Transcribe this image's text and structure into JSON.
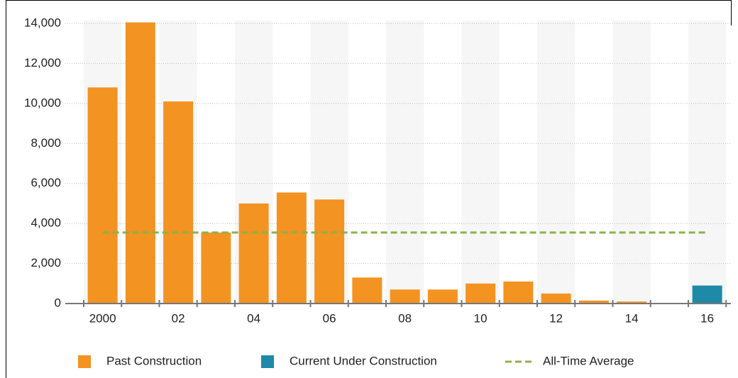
{
  "chart_data": {
    "type": "bar",
    "categories": [
      "2000",
      null,
      "02",
      null,
      "04",
      null,
      "06",
      null,
      "08",
      null,
      "10",
      null,
      "12",
      null,
      "14",
      null,
      "16"
    ],
    "series": [
      {
        "name": "Past Construction",
        "color": "#f39322",
        "values": [
          10800,
          14050,
          10100,
          3550,
          5000,
          5550,
          5200,
          1300,
          700,
          700,
          1000,
          1100,
          500,
          150,
          100,
          30,
          null
        ]
      },
      {
        "name": "Current Under Construction",
        "color": "#1f8aa8",
        "values": [
          null,
          null,
          null,
          null,
          null,
          null,
          null,
          null,
          null,
          null,
          null,
          null,
          null,
          null,
          null,
          null,
          900
        ]
      }
    ],
    "average": {
      "name": "All-Time Average",
      "color": "#8db14a",
      "value": 3550
    },
    "ylim": [
      0,
      14000
    ],
    "yticks": [
      0,
      {
        "value": 2000,
        "label": "2,000"
      },
      {
        "value": 4000,
        "label": "4,000"
      },
      {
        "value": 6000,
        "label": "6,000"
      },
      {
        "value": 8000,
        "label": "8,000"
      },
      {
        "value": 10000,
        "label": "10,000"
      },
      {
        "value": 12000,
        "label": "12,000"
      },
      {
        "value": 14000,
        "label": "14,000"
      }
    ],
    "grid": true
  }
}
